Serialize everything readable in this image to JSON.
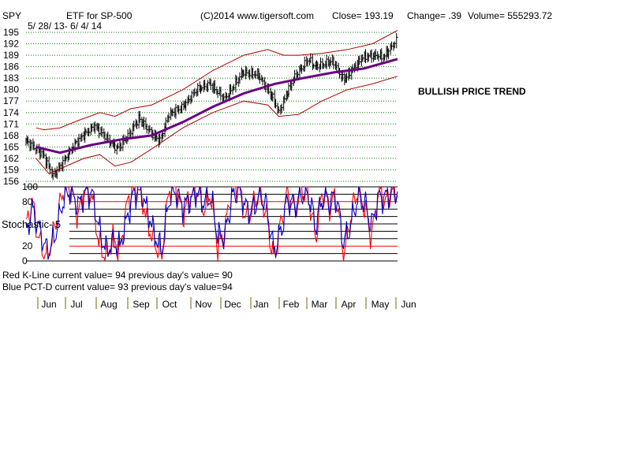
{
  "header": {
    "symbol": "SPY",
    "name": "ETF for SP-500",
    "copyright": "(C)2014 www.tigersoft.com",
    "close": "Close=  193.19",
    "change": "Change= .39",
    "volume": "Volume= 555293.72",
    "date_range": "5/ 28/ 13- 6/ 4/ 14"
  },
  "annotation": "BULLISH PRICE TREND",
  "stochastic_label": "Stochastic- 5",
  "status_lines": {
    "red": "Red K-Line current value= 94 previous day's value= 90",
    "blue": "Blue PCT-D current value= 93 previous day's value=94"
  },
  "colors": {
    "price_bars": "#000000",
    "bands": "#b00000",
    "moving_average": "#6a0080",
    "k_line": "#ff0000",
    "pct_d": "#0000cc",
    "grid": "#008000"
  },
  "chart_data": [
    {
      "type": "line",
      "title": "",
      "price_ticks": [
        156,
        159,
        162,
        165,
        168,
        171,
        174,
        177,
        180,
        183,
        186,
        189,
        192,
        195
      ],
      "ylim": [
        156,
        195
      ],
      "x_tick_labels": [
        "Jun",
        "Jul",
        "Aug",
        "Sep",
        "Oct",
        "Nov",
        "Dec",
        "Jan",
        "Feb",
        "Mar",
        "Apr",
        "May",
        "Jun"
      ],
      "series": [
        {
          "x": [
            "2013-05-28",
            "2013-06-07",
            "2013-06-14",
            "2013-06-24",
            "2013-07-03",
            "2013-07-15",
            "2013-07-26",
            "2013-08-05",
            "2013-08-16",
            "2013-08-27",
            "2013-09-06",
            "2013-09-18",
            "2013-10-01",
            "2013-10-09",
            "2013-10-18",
            "2013-11-01",
            "2013-11-15",
            "2013-11-28",
            "2013-12-13",
            "2013-12-31",
            "2014-01-15",
            "2014-01-31",
            "2014-02-05",
            "2014-02-20",
            "2014-03-07",
            "2014-03-14",
            "2014-03-31",
            "2014-04-11",
            "2014-04-30",
            "2014-05-14",
            "2014-05-21",
            "2014-06-04"
          ],
          "values": [
            166.5,
            164.5,
            163.0,
            157.5,
            160.5,
            165.5,
            168.5,
            170.5,
            167.5,
            164.5,
            167.5,
            172.5,
            168.5,
            166.5,
            173.5,
            175.5,
            180.0,
            181.5,
            177.5,
            184.5,
            184.0,
            177.5,
            174.0,
            183.0,
            188.0,
            186.0,
            187.5,
            182.5,
            188.5,
            189.0,
            188.5,
            193.2
          ]
        },
        {
          "x": [
            "2013-06-07",
            "2013-07-01",
            "2013-08-01",
            "2013-09-01",
            "2013-10-01",
            "2013-11-01",
            "2013-12-01",
            "2014-01-01",
            "2014-02-01",
            "2014-03-01",
            "2014-04-01",
            "2014-05-01",
            "2014-06-04"
          ],
          "values": [
            165.0,
            163.5,
            165.5,
            167.0,
            168.0,
            171.5,
            175.5,
            179.0,
            181.5,
            183.0,
            184.5,
            185.5,
            188.0
          ]
        },
        {
          "x": [
            "2013-06-07",
            "2013-06-15",
            "2013-07-01",
            "2013-07-20",
            "2013-08-10",
            "2013-08-25",
            "2013-09-10",
            "2013-10-01",
            "2013-11-01",
            "2013-12-01",
            "2014-01-01",
            "2014-01-25",
            "2014-02-10",
            "2014-02-25",
            "2014-03-20",
            "2014-04-15",
            "2014-05-10",
            "2014-06-04"
          ],
          "values": [
            170.0,
            169.5,
            170.0,
            172.0,
            174.0,
            173.0,
            175.0,
            176.0,
            180.0,
            185.0,
            189.0,
            190.5,
            189.0,
            189.0,
            189.5,
            190.5,
            192.0,
            195.5
          ]
        },
        {
          "x": [
            "2013-06-07",
            "2013-06-20",
            "2013-07-03",
            "2013-07-25",
            "2013-08-10",
            "2013-08-25",
            "2013-09-10",
            "2013-10-01",
            "2013-11-01",
            "2013-12-01",
            "2014-01-01",
            "2014-01-25",
            "2014-02-05",
            "2014-02-25",
            "2014-03-20",
            "2014-04-15",
            "2014-05-10",
            "2014-06-04"
          ],
          "values": [
            162.0,
            158.0,
            159.5,
            162.0,
            163.0,
            160.0,
            161.0,
            164.5,
            170.0,
            174.0,
            177.0,
            176.0,
            173.0,
            173.5,
            177.0,
            180.0,
            181.5,
            183.5
          ]
        }
      ]
    },
    {
      "type": "line",
      "title": "",
      "ylabel": "Stochastic- 5",
      "ylim": [
        0,
        100
      ],
      "y_tick_labels": [
        "100",
        "80",
        "20",
        "0"
      ],
      "series": [
        {
          "name": "Red K-Line",
          "x": [
            "2013-05-28",
            "2013-06-03",
            "2013-06-10",
            "2013-06-18",
            "2013-06-25",
            "2013-07-05",
            "2013-07-12",
            "2013-07-19",
            "2013-07-26",
            "2013-08-02",
            "2013-08-09",
            "2013-08-16",
            "2013-08-23",
            "2013-08-30",
            "2013-09-06",
            "2013-09-13",
            "2013-09-20",
            "2013-09-27",
            "2013-10-04",
            "2013-10-11",
            "2013-10-18",
            "2013-10-25",
            "2013-11-01",
            "2013-11-08",
            "2013-11-15",
            "2013-11-22",
            "2013-11-29",
            "2013-12-06",
            "2013-12-13",
            "2013-12-20",
            "2013-12-27",
            "2014-01-03",
            "2014-01-10",
            "2014-01-17",
            "2014-01-24",
            "2014-01-31",
            "2014-02-07",
            "2014-02-14",
            "2014-02-21",
            "2014-02-28",
            "2014-03-07",
            "2014-03-14",
            "2014-03-21",
            "2014-03-28",
            "2014-04-04",
            "2014-04-11",
            "2014-04-18",
            "2014-04-25",
            "2014-05-02",
            "2014-05-09",
            "2014-05-16",
            "2014-05-23",
            "2014-05-30",
            "2014-06-04"
          ],
          "values": [
            45,
            82,
            30,
            5,
            40,
            97,
            95,
            60,
            98,
            90,
            25,
            5,
            30,
            10,
            75,
            98,
            92,
            50,
            25,
            5,
            98,
            95,
            60,
            85,
            97,
            70,
            95,
            20,
            40,
            98,
            100,
            55,
            70,
            98,
            60,
            3,
            50,
            95,
            65,
            97,
            85,
            30,
            95,
            75,
            90,
            8,
            60,
            95,
            70,
            30,
            95,
            80,
            98,
            94
          ]
        },
        {
          "name": "Blue PCT-D",
          "x": [
            "2013-05-28",
            "2013-06-03",
            "2013-06-10",
            "2013-06-18",
            "2013-06-25",
            "2013-07-05",
            "2013-07-12",
            "2013-07-19",
            "2013-07-26",
            "2013-08-02",
            "2013-08-09",
            "2013-08-16",
            "2013-08-23",
            "2013-08-30",
            "2013-09-06",
            "2013-09-13",
            "2013-09-20",
            "2013-09-27",
            "2013-10-04",
            "2013-10-11",
            "2013-10-18",
            "2013-10-25",
            "2013-11-01",
            "2013-11-08",
            "2013-11-15",
            "2013-11-22",
            "2013-11-29",
            "2013-12-06",
            "2013-12-13",
            "2013-12-20",
            "2013-12-27",
            "2014-01-03",
            "2014-01-10",
            "2014-01-17",
            "2014-01-24",
            "2014-01-31",
            "2014-02-07",
            "2014-02-14",
            "2014-02-21",
            "2014-02-28",
            "2014-03-07",
            "2014-03-14",
            "2014-03-21",
            "2014-03-28",
            "2014-04-04",
            "2014-04-11",
            "2014-04-18",
            "2014-04-25",
            "2014-05-02",
            "2014-05-09",
            "2014-05-16",
            "2014-05-23",
            "2014-05-30",
            "2014-06-04"
          ],
          "values": [
            35,
            70,
            45,
            15,
            30,
            85,
            95,
            72,
            90,
            92,
            45,
            15,
            25,
            20,
            55,
            90,
            94,
            65,
            35,
            15,
            85,
            95,
            72,
            80,
            92,
            78,
            88,
            35,
            35,
            85,
            98,
            70,
            65,
            90,
            72,
            15,
            40,
            85,
            75,
            90,
            88,
            45,
            85,
            80,
            88,
            25,
            50,
            85,
            78,
            45,
            85,
            85,
            95,
            93
          ]
        }
      ]
    }
  ]
}
